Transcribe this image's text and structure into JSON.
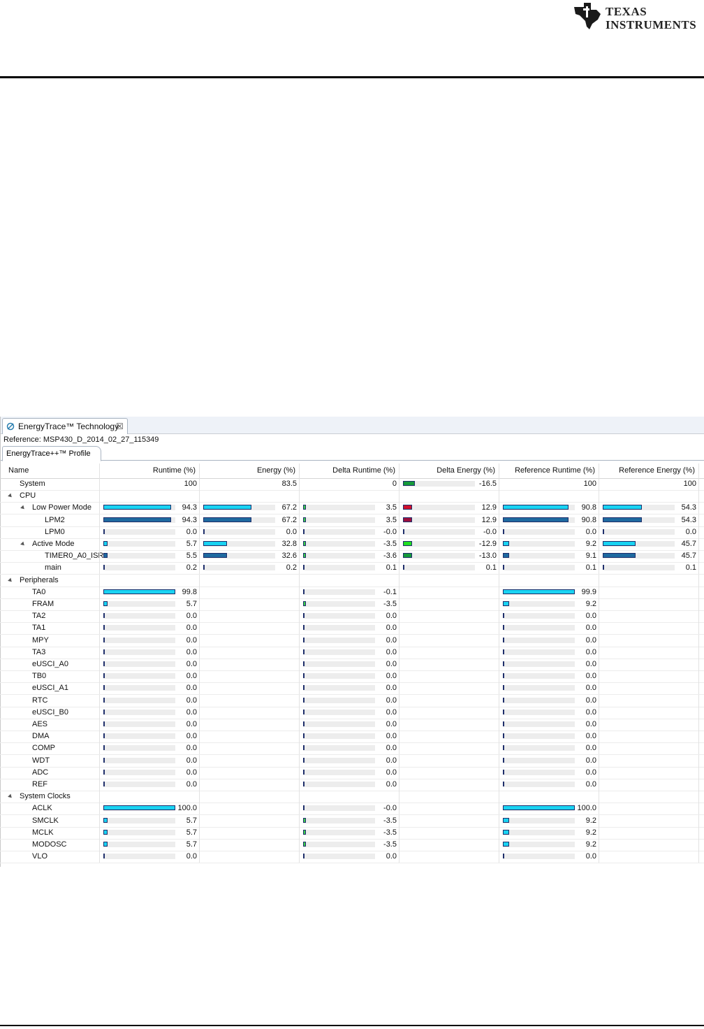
{
  "logo": {
    "line1": "TEXAS",
    "line2": "INSTRUMENTS"
  },
  "tab": {
    "label": "EnergyTrace™ Technology",
    "close_glyph": "☒"
  },
  "reference": "Reference: MSP430_D_2014_02_27_115349",
  "subtab": "EnergyTrace++™ Profile",
  "columns": [
    "Name",
    "Runtime (%)",
    "Energy (%)",
    "Delta Runtime (%)",
    "Delta Energy (%)",
    "Reference Runtime (%)",
    "Reference Energy (%)"
  ],
  "colors": {
    "cyan": "#19d3f2",
    "blue": "#1f6aa0",
    "green_light": "#3ad24a",
    "green_bright": "#22e022",
    "green_dark": "#159a3a",
    "red": "#d0102b",
    "crimson": "#9b0f3c",
    "track": "#ededed"
  },
  "rows": [
    {
      "name": "System",
      "indent": 0,
      "expander": false,
      "cells": [
        {
          "value": "100"
        },
        {
          "value": "83.5"
        },
        {
          "value": "0"
        },
        {
          "value": "-16.5",
          "bar": 16.5,
          "color": "green_dark"
        },
        {
          "value": "100"
        },
        {
          "value": "100"
        }
      ]
    },
    {
      "name": "CPU",
      "indent": 0,
      "expander": true,
      "cells": [
        null,
        null,
        null,
        null,
        null,
        null
      ]
    },
    {
      "name": "Low Power Mode",
      "indent": 1,
      "expander": true,
      "cells": [
        {
          "value": "94.3",
          "bar": 94.3,
          "color": "cyan"
        },
        {
          "value": "67.2",
          "bar": 67.2,
          "color": "cyan"
        },
        {
          "value": "3.5",
          "bar": 3.5,
          "color": "green_light"
        },
        {
          "value": "12.9",
          "bar": 12.9,
          "color": "red"
        },
        {
          "value": "90.8",
          "bar": 90.8,
          "color": "cyan"
        },
        {
          "value": "54.3",
          "bar": 54.3,
          "color": "cyan"
        }
      ]
    },
    {
      "name": "LPM2",
      "indent": 2,
      "expander": false,
      "cells": [
        {
          "value": "94.3",
          "bar": 94.3,
          "color": "blue"
        },
        {
          "value": "67.2",
          "bar": 67.2,
          "color": "blue"
        },
        {
          "value": "3.5",
          "bar": 3.5,
          "color": "green_light"
        },
        {
          "value": "12.9",
          "bar": 12.9,
          "color": "crimson"
        },
        {
          "value": "90.8",
          "bar": 90.8,
          "color": "blue"
        },
        {
          "value": "54.3",
          "bar": 54.3,
          "color": "blue"
        }
      ]
    },
    {
      "name": "LPM0",
      "indent": 2,
      "expander": false,
      "cells": [
        {
          "value": "0.0",
          "bar": 0,
          "color": "blue"
        },
        {
          "value": "0.0",
          "bar": 0,
          "color": "blue"
        },
        {
          "value": "-0.0",
          "bar": 0,
          "color": "blue"
        },
        {
          "value": "-0.0",
          "bar": 0,
          "color": "blue"
        },
        {
          "value": "0.0",
          "bar": 0,
          "color": "blue"
        },
        {
          "value": "0.0",
          "bar": 0,
          "color": "blue"
        }
      ]
    },
    {
      "name": "Active Mode",
      "indent": 1,
      "expander": true,
      "cells": [
        {
          "value": "5.7",
          "bar": 5.7,
          "color": "cyan"
        },
        {
          "value": "32.8",
          "bar": 32.8,
          "color": "cyan"
        },
        {
          "value": "-3.5",
          "bar": 3.5,
          "color": "green_light"
        },
        {
          "value": "-12.9",
          "bar": 12.9,
          "color": "green_bright"
        },
        {
          "value": "9.2",
          "bar": 9.2,
          "color": "cyan"
        },
        {
          "value": "45.7",
          "bar": 45.7,
          "color": "cyan"
        }
      ]
    },
    {
      "name": "TIMER0_A0_ISR",
      "indent": 2,
      "expander": false,
      "cells": [
        {
          "value": "5.5",
          "bar": 5.5,
          "color": "blue"
        },
        {
          "value": "32.6",
          "bar": 32.6,
          "color": "blue"
        },
        {
          "value": "-3.6",
          "bar": 3.6,
          "color": "green_light"
        },
        {
          "value": "-13.0",
          "bar": 13.0,
          "color": "green_dark"
        },
        {
          "value": "9.1",
          "bar": 9.1,
          "color": "blue"
        },
        {
          "value": "45.7",
          "bar": 45.7,
          "color": "blue"
        }
      ]
    },
    {
      "name": "main",
      "indent": 2,
      "expander": false,
      "cells": [
        {
          "value": "0.2",
          "bar": 0.2,
          "color": "blue"
        },
        {
          "value": "0.2",
          "bar": 0.2,
          "color": "blue"
        },
        {
          "value": "0.1",
          "bar": 0.1,
          "color": "blue"
        },
        {
          "value": "0.1",
          "bar": 0.1,
          "color": "blue"
        },
        {
          "value": "0.1",
          "bar": 0.1,
          "color": "blue"
        },
        {
          "value": "0.1",
          "bar": 0.1,
          "color": "blue"
        }
      ]
    },
    {
      "name": "Peripherals",
      "indent": 0,
      "expander": true,
      "cells": [
        null,
        null,
        null,
        null,
        null,
        null
      ]
    },
    {
      "name": "TA0",
      "indent": 1,
      "expander": false,
      "cells": [
        {
          "value": "99.8",
          "bar": 99.8,
          "color": "cyan"
        },
        null,
        {
          "value": "-0.1",
          "bar": 0.1,
          "color": "blue"
        },
        null,
        {
          "value": "99.9",
          "bar": 99.9,
          "color": "cyan"
        },
        null
      ]
    },
    {
      "name": "FRAM",
      "indent": 1,
      "expander": false,
      "cells": [
        {
          "value": "5.7",
          "bar": 5.7,
          "color": "cyan"
        },
        null,
        {
          "value": "-3.5",
          "bar": 3.5,
          "color": "green_light"
        },
        null,
        {
          "value": "9.2",
          "bar": 9.2,
          "color": "cyan"
        },
        null
      ]
    },
    {
      "name": "TA2",
      "indent": 1,
      "expander": false,
      "cells": [
        {
          "value": "0.0",
          "bar": 0,
          "color": "blue"
        },
        null,
        {
          "value": "0.0",
          "bar": 0,
          "color": "blue"
        },
        null,
        {
          "value": "0.0",
          "bar": 0,
          "color": "blue"
        },
        null
      ]
    },
    {
      "name": "TA1",
      "indent": 1,
      "expander": false,
      "cells": [
        {
          "value": "0.0",
          "bar": 0,
          "color": "blue"
        },
        null,
        {
          "value": "0.0",
          "bar": 0,
          "color": "blue"
        },
        null,
        {
          "value": "0.0",
          "bar": 0,
          "color": "blue"
        },
        null
      ]
    },
    {
      "name": "MPY",
      "indent": 1,
      "expander": false,
      "cells": [
        {
          "value": "0.0",
          "bar": 0,
          "color": "blue"
        },
        null,
        {
          "value": "0.0",
          "bar": 0,
          "color": "blue"
        },
        null,
        {
          "value": "0.0",
          "bar": 0,
          "color": "blue"
        },
        null
      ]
    },
    {
      "name": "TA3",
      "indent": 1,
      "expander": false,
      "cells": [
        {
          "value": "0.0",
          "bar": 0,
          "color": "blue"
        },
        null,
        {
          "value": "0.0",
          "bar": 0,
          "color": "blue"
        },
        null,
        {
          "value": "0.0",
          "bar": 0,
          "color": "blue"
        },
        null
      ]
    },
    {
      "name": "eUSCI_A0",
      "indent": 1,
      "expander": false,
      "cells": [
        {
          "value": "0.0",
          "bar": 0,
          "color": "blue"
        },
        null,
        {
          "value": "0.0",
          "bar": 0,
          "color": "blue"
        },
        null,
        {
          "value": "0.0",
          "bar": 0,
          "color": "blue"
        },
        null
      ]
    },
    {
      "name": "TB0",
      "indent": 1,
      "expander": false,
      "cells": [
        {
          "value": "0.0",
          "bar": 0,
          "color": "blue"
        },
        null,
        {
          "value": "0.0",
          "bar": 0,
          "color": "blue"
        },
        null,
        {
          "value": "0.0",
          "bar": 0,
          "color": "blue"
        },
        null
      ]
    },
    {
      "name": "eUSCI_A1",
      "indent": 1,
      "expander": false,
      "cells": [
        {
          "value": "0.0",
          "bar": 0,
          "color": "blue"
        },
        null,
        {
          "value": "0.0",
          "bar": 0,
          "color": "blue"
        },
        null,
        {
          "value": "0.0",
          "bar": 0,
          "color": "blue"
        },
        null
      ]
    },
    {
      "name": "RTC",
      "indent": 1,
      "expander": false,
      "cells": [
        {
          "value": "0.0",
          "bar": 0,
          "color": "blue"
        },
        null,
        {
          "value": "0.0",
          "bar": 0,
          "color": "blue"
        },
        null,
        {
          "value": "0.0",
          "bar": 0,
          "color": "blue"
        },
        null
      ]
    },
    {
      "name": "eUSCI_B0",
      "indent": 1,
      "expander": false,
      "cells": [
        {
          "value": "0.0",
          "bar": 0,
          "color": "blue"
        },
        null,
        {
          "value": "0.0",
          "bar": 0,
          "color": "blue"
        },
        null,
        {
          "value": "0.0",
          "bar": 0,
          "color": "blue"
        },
        null
      ]
    },
    {
      "name": "AES",
      "indent": 1,
      "expander": false,
      "cells": [
        {
          "value": "0.0",
          "bar": 0,
          "color": "blue"
        },
        null,
        {
          "value": "0.0",
          "bar": 0,
          "color": "blue"
        },
        null,
        {
          "value": "0.0",
          "bar": 0,
          "color": "blue"
        },
        null
      ]
    },
    {
      "name": "DMA",
      "indent": 1,
      "expander": false,
      "cells": [
        {
          "value": "0.0",
          "bar": 0,
          "color": "blue"
        },
        null,
        {
          "value": "0.0",
          "bar": 0,
          "color": "blue"
        },
        null,
        {
          "value": "0.0",
          "bar": 0,
          "color": "blue"
        },
        null
      ]
    },
    {
      "name": "COMP",
      "indent": 1,
      "expander": false,
      "cells": [
        {
          "value": "0.0",
          "bar": 0,
          "color": "blue"
        },
        null,
        {
          "value": "0.0",
          "bar": 0,
          "color": "blue"
        },
        null,
        {
          "value": "0.0",
          "bar": 0,
          "color": "blue"
        },
        null
      ]
    },
    {
      "name": "WDT",
      "indent": 1,
      "expander": false,
      "cells": [
        {
          "value": "0.0",
          "bar": 0,
          "color": "blue"
        },
        null,
        {
          "value": "0.0",
          "bar": 0,
          "color": "blue"
        },
        null,
        {
          "value": "0.0",
          "bar": 0,
          "color": "blue"
        },
        null
      ]
    },
    {
      "name": "ADC",
      "indent": 1,
      "expander": false,
      "cells": [
        {
          "value": "0.0",
          "bar": 0,
          "color": "blue"
        },
        null,
        {
          "value": "0.0",
          "bar": 0,
          "color": "blue"
        },
        null,
        {
          "value": "0.0",
          "bar": 0,
          "color": "blue"
        },
        null
      ]
    },
    {
      "name": "REF",
      "indent": 1,
      "expander": false,
      "cells": [
        {
          "value": "0.0",
          "bar": 0,
          "color": "blue"
        },
        null,
        {
          "value": "0.0",
          "bar": 0,
          "color": "blue"
        },
        null,
        {
          "value": "0.0",
          "bar": 0,
          "color": "blue"
        },
        null
      ]
    },
    {
      "name": "System Clocks",
      "indent": 0,
      "expander": true,
      "cells": [
        null,
        null,
        null,
        null,
        null,
        null
      ]
    },
    {
      "name": "ACLK",
      "indent": 1,
      "expander": false,
      "cells": [
        {
          "value": "100.0",
          "bar": 100,
          "color": "cyan"
        },
        null,
        {
          "value": "-0.0",
          "bar": 0,
          "color": "blue"
        },
        null,
        {
          "value": "100.0",
          "bar": 100,
          "color": "cyan"
        },
        null
      ]
    },
    {
      "name": "SMCLK",
      "indent": 1,
      "expander": false,
      "cells": [
        {
          "value": "5.7",
          "bar": 5.7,
          "color": "cyan"
        },
        null,
        {
          "value": "-3.5",
          "bar": 3.5,
          "color": "green_light"
        },
        null,
        {
          "value": "9.2",
          "bar": 9.2,
          "color": "cyan"
        },
        null
      ]
    },
    {
      "name": "MCLK",
      "indent": 1,
      "expander": false,
      "cells": [
        {
          "value": "5.7",
          "bar": 5.7,
          "color": "cyan"
        },
        null,
        {
          "value": "-3.5",
          "bar": 3.5,
          "color": "green_light"
        },
        null,
        {
          "value": "9.2",
          "bar": 9.2,
          "color": "cyan"
        },
        null
      ]
    },
    {
      "name": "MODOSC",
      "indent": 1,
      "expander": false,
      "cells": [
        {
          "value": "5.7",
          "bar": 5.7,
          "color": "cyan"
        },
        null,
        {
          "value": "-3.5",
          "bar": 3.5,
          "color": "green_light"
        },
        null,
        {
          "value": "9.2",
          "bar": 9.2,
          "color": "cyan"
        },
        null
      ]
    },
    {
      "name": "VLO",
      "indent": 1,
      "expander": false,
      "cells": [
        {
          "value": "0.0",
          "bar": 0,
          "color": "blue"
        },
        null,
        {
          "value": "0.0",
          "bar": 0,
          "color": "blue"
        },
        null,
        {
          "value": "0.0",
          "bar": 0,
          "color": "blue"
        },
        null
      ]
    }
  ]
}
